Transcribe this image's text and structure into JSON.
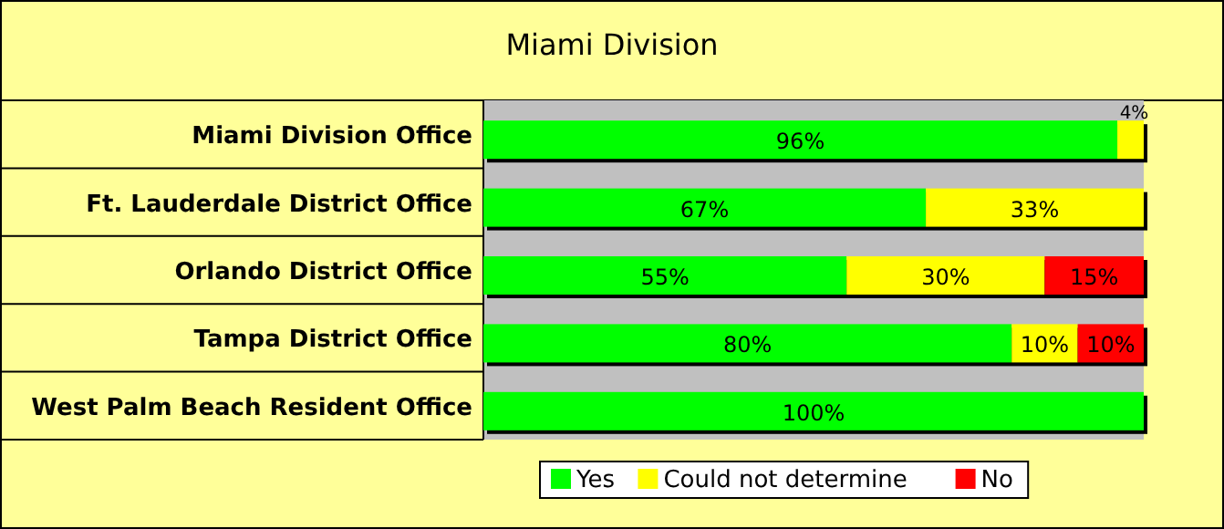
{
  "chart_data": {
    "type": "bar",
    "title": "Miami Division",
    "orientation": "horizontal",
    "stacked": true,
    "legend": "bottom",
    "categories": [
      "Miami Division Office",
      "Ft. Lauderdale District Office",
      "Orlando District Office",
      "Tampa District Office",
      "West Palm Beach Resident Office"
    ],
    "series": [
      {
        "name": "Yes",
        "color": "#00ff00",
        "values": [
          96,
          67,
          55,
          80,
          100
        ],
        "value_labels": [
          "96%",
          "67%",
          "55%",
          "80%",
          "100%"
        ]
      },
      {
        "name": "Could not determine",
        "color": "#ffff00",
        "values": [
          4,
          33,
          30,
          10,
          0
        ],
        "value_labels": [
          "4%",
          "33%",
          "30%",
          "10%",
          null
        ]
      },
      {
        "name": "No",
        "color": "#ff0000",
        "values": [
          0,
          0,
          15,
          10,
          0
        ],
        "value_labels": [
          null,
          null,
          "15%",
          "10%",
          null
        ]
      }
    ]
  }
}
